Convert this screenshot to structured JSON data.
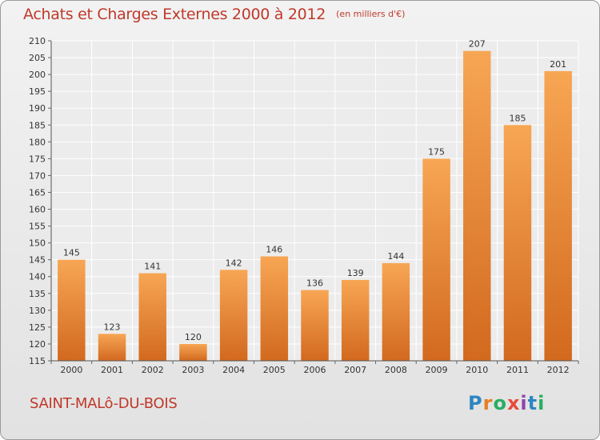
{
  "title": "Achats et Charges Externes 2000 à 2012",
  "subtitle": "(en milliers d'€)",
  "commune": "SAINT-MALô-DU-BOIS",
  "logo": {
    "letters": [
      "P",
      "r",
      "o",
      "x",
      "i",
      "t",
      "i"
    ],
    "colors": [
      "#2e86c1",
      "#e67e22",
      "#27ae60",
      "#e74c3c",
      "#8e44ad",
      "#2e86c1",
      "#27ae60"
    ]
  },
  "colors": {
    "bar_top": "#f7a654",
    "bar_bottom": "#d2691e",
    "title": "#c0392b"
  },
  "chart_data": {
    "type": "bar",
    "categories": [
      "2000",
      "2001",
      "2002",
      "2003",
      "2004",
      "2005",
      "2006",
      "2007",
      "2008",
      "2009",
      "2010",
      "2011",
      "2012"
    ],
    "values": [
      145,
      123,
      141,
      120,
      142,
      146,
      136,
      139,
      144,
      175,
      207,
      185,
      201
    ],
    "data_labels": [
      "145",
      "123",
      "141",
      "120",
      "142",
      "146",
      "136",
      "139",
      "144",
      "175",
      "207",
      "185",
      "201"
    ],
    "ylim": [
      115,
      210
    ],
    "yticks": [
      "115",
      "120",
      "125",
      "130",
      "135",
      "140",
      "145",
      "150",
      "155",
      "160",
      "165",
      "170",
      "175",
      "180",
      "185",
      "190",
      "195",
      "200",
      "205",
      "210"
    ],
    "grid": true
  }
}
